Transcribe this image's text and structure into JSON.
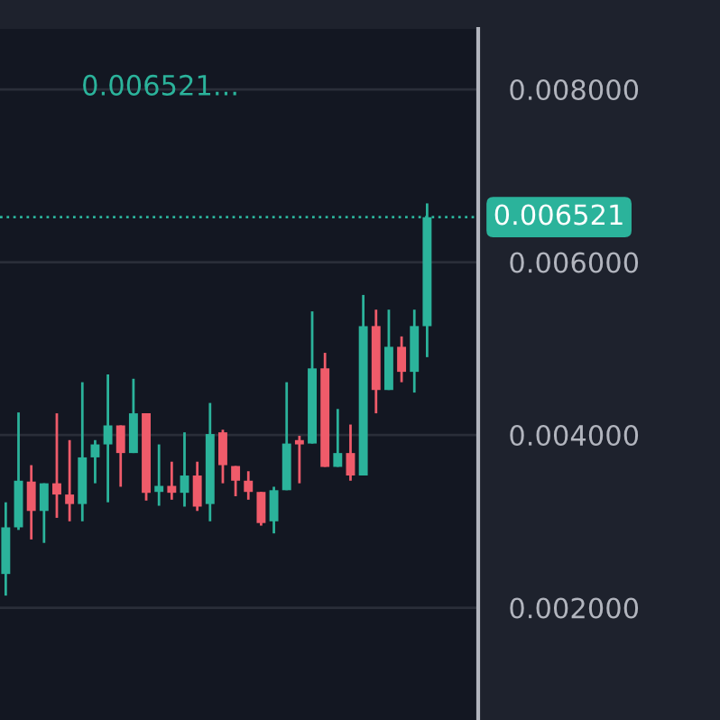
{
  "chart_data": {
    "type": "candlestick",
    "categories": [
      null,
      null,
      null,
      null,
      null,
      null,
      null,
      null,
      null,
      null,
      null,
      null,
      null,
      null,
      null,
      null,
      null,
      null,
      null,
      null,
      null,
      null,
      null,
      null,
      null,
      null,
      null,
      null,
      null,
      null,
      null,
      null,
      null,
      null
    ],
    "ohlc": [
      [
        0.00239,
        0.00322,
        0.00214,
        0.00293
      ],
      [
        0.00293,
        0.00426,
        0.0029,
        0.00347
      ],
      [
        0.00346,
        0.00365,
        0.00279,
        0.00312
      ],
      [
        0.00312,
        0.00344,
        0.00275,
        0.00344
      ],
      [
        0.00344,
        0.00425,
        0.00304,
        0.00331
      ],
      [
        0.00331,
        0.00394,
        0.003,
        0.0032
      ],
      [
        0.0032,
        0.00461,
        0.003,
        0.00374
      ],
      [
        0.00374,
        0.00394,
        0.00344,
        0.00389
      ],
      [
        0.00389,
        0.0047,
        0.00322,
        0.00411
      ],
      [
        0.00411,
        0.00411,
        0.0034,
        0.00379
      ],
      [
        0.00379,
        0.00465,
        0.00379,
        0.00425
      ],
      [
        0.00425,
        0.00425,
        0.00324,
        0.00333
      ],
      [
        0.00334,
        0.00389,
        0.00318,
        0.00341
      ],
      [
        0.00341,
        0.00369,
        0.00325,
        0.00333
      ],
      [
        0.00333,
        0.00403,
        0.00317,
        0.00353
      ],
      [
        0.00353,
        0.00369,
        0.00312,
        0.00317
      ],
      [
        0.0032,
        0.00437,
        0.003,
        0.00401
      ],
      [
        0.00403,
        0.00406,
        0.00344,
        0.00365
      ],
      [
        0.00364,
        0.00364,
        0.00329,
        0.00347
      ],
      [
        0.00347,
        0.00358,
        0.00325,
        0.00334
      ],
      [
        0.00334,
        0.00334,
        0.00295,
        0.00298
      ],
      [
        0.003,
        0.0034,
        0.00286,
        0.00336
      ],
      [
        0.00336,
        0.00461,
        0.00336,
        0.0039
      ],
      [
        0.00394,
        0.00399,
        0.00344,
        0.00389
      ],
      [
        0.0039,
        0.00543,
        0.0039,
        0.00477
      ],
      [
        0.00477,
        0.00495,
        0.00363,
        0.00363
      ],
      [
        0.00363,
        0.0043,
        0.00363,
        0.00379
      ],
      [
        0.00379,
        0.00412,
        0.00347,
        0.00353
      ],
      [
        0.00353,
        0.00562,
        0.00353,
        0.00526
      ],
      [
        0.00526,
        0.00545,
        0.00425,
        0.00452
      ],
      [
        0.00452,
        0.00545,
        0.00452,
        0.00502
      ],
      [
        0.00502,
        0.00514,
        0.00461,
        0.00473
      ],
      [
        0.00473,
        0.00545,
        0.00449,
        0.00526
      ],
      [
        0.00526,
        0.00668,
        0.0049,
        0.006521
      ]
    ],
    "colors": [
      "#2bb39b",
      "#2bb39b",
      "#ef5b6a",
      "#2bb39b",
      "#ef5b6a",
      "#ef5b6a",
      "#2bb39b",
      "#2bb39b",
      "#2bb39b",
      "#ef5b6a",
      "#2bb39b",
      "#ef5b6a",
      "#2bb39b",
      "#ef5b6a",
      "#2bb39b",
      "#ef5b6a",
      "#2bb39b",
      "#ef5b6a",
      "#ef5b6a",
      "#ef5b6a",
      "#ef5b6a",
      "#2bb39b",
      "#2bb39b",
      "#ef5b6a",
      "#2bb39b",
      "#ef5b6a",
      "#2bb39b",
      "#ef5b6a",
      "#2bb39b",
      "#ef5b6a",
      "#2bb39b",
      "#ef5b6a",
      "#2bb39b",
      "#2bb39b"
    ],
    "ylim": [
      0.0007,
      0.0087
    ],
    "yticks": [
      {
        "value": 0.002,
        "label": "0.002000"
      },
      {
        "value": 0.004,
        "label": "0.004000"
      },
      {
        "value": 0.006,
        "label": "0.006000"
      },
      {
        "value": 0.008,
        "label": "0.008000"
      }
    ],
    "grid": "y",
    "ref_lines": [
      {
        "axis": "y",
        "value": 0.006521,
        "label": "0.006521",
        "color": "#2bb39b",
        "line_style": "dotted"
      }
    ],
    "annotations": [
      "0.006521..."
    ]
  }
}
